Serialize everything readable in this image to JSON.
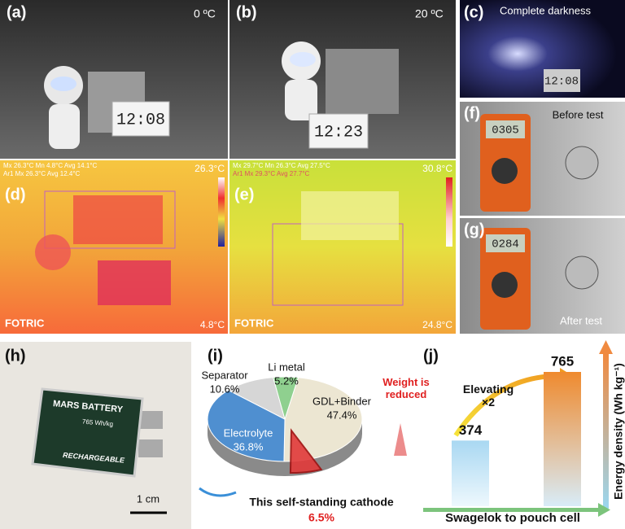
{
  "panels": {
    "labels": [
      "(a)",
      "(b)",
      "(c)",
      "(d)",
      "(e)",
      "(f)",
      "(g)",
      "(h)",
      "(i)",
      "(j)"
    ]
  },
  "a": {
    "temperature": "0 ºC",
    "clock": "12:08"
  },
  "b": {
    "temperature": "20 ºC",
    "clock": "12:23"
  },
  "c": {
    "caption": "Complete darkness",
    "clock": "12:08"
  },
  "d": {
    "readout": [
      "Mx 26.3°C Mn 4.8°C Avg 14.1°C",
      "Ar1 Mx 26.3°C Avg 12.4°C"
    ],
    "max": "26.3°C",
    "min": "4.8°C",
    "brand": "FOTRIC"
  },
  "e": {
    "readout": [
      "Mx 29.7°C Mn 26.3°C Avg 27.5°C",
      "Ar1 Mx 29.3°C Avg 27.7°C"
    ],
    "max": "30.8°C",
    "min": "24.8°C",
    "brand": "FOTRIC"
  },
  "f": {
    "caption": "Before test",
    "reading": "0305"
  },
  "g": {
    "caption": "After test",
    "reading": "0284"
  },
  "h": {
    "brand": "MARS BATTERY",
    "spec": "765 Wh/kg",
    "note": "RECHARGEABLE",
    "scale_bar": "1 cm"
  },
  "i": {
    "type": "pie",
    "categories": [
      "GDL+Binder",
      "Electrolyte",
      "Separator",
      "Li metal"
    ],
    "values": [
      47.4,
      36.8,
      10.6,
      5.2
    ],
    "value_labels": [
      "47.4%",
      "36.8%",
      "10.6%",
      "5.2%"
    ],
    "colors": [
      "#ece6d2",
      "#4f8fd0",
      "#d6d6d6",
      "#8fd08f"
    ],
    "cathode": {
      "label": "This self-standing cathode",
      "value": 6.5,
      "value_label": "6.5%",
      "color": "#e23a3a"
    },
    "annotation": "Weight is reduced"
  },
  "j": {
    "type": "bar",
    "values": [
      374,
      765
    ],
    "colors": [
      "#a9d8f2",
      "#ef8a2e"
    ],
    "annotation": "Elevating ×2",
    "xlabel": "Swagelok to pouch cell",
    "ylabel": "Energy density (Wh kg⁻¹)"
  }
}
